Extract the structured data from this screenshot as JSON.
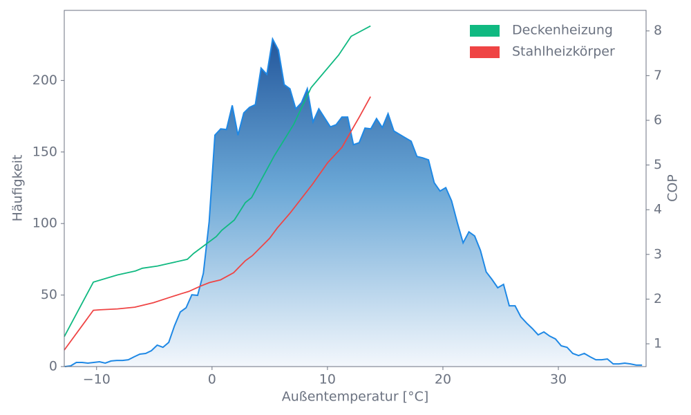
{
  "chart_data": {
    "type": "line",
    "xlabel": "Außentemperatur [°C]",
    "ylabel": "Häufigkeit",
    "y2label": "COP",
    "xlim": [
      -12.8,
      37.6
    ],
    "ylim": [
      0,
      249
    ],
    "y2lim": [
      0.49,
      8.46
    ],
    "xticks": [
      {
        "value": -10,
        "label": "−10"
      },
      0,
      10,
      20,
      30
    ],
    "yticks": [
      0,
      50,
      100,
      150,
      200
    ],
    "y2ticks": [
      1,
      2,
      3,
      4,
      5,
      6,
      7,
      8
    ],
    "legend": "upper right",
    "series": [
      {
        "color": "#1e88e5",
        "fill": true,
        "x": [
          -12.75,
          -12.25,
          -11.75,
          -11.25,
          -10.75,
          -10.25,
          -9.75,
          -9.25,
          -8.75,
          -8.25,
          -7.75,
          -7.25,
          -6.75,
          -6.25,
          -5.75,
          -5.25,
          -4.75,
          -4.25,
          -3.75,
          -3.25,
          -2.75,
          -2.25,
          -1.75,
          -1.25,
          -0.75,
          -0.25,
          0.25,
          0.75,
          1.25,
          1.75,
          2.25,
          2.75,
          3.25,
          3.75,
          4.25,
          4.75,
          5.25,
          5.75,
          6.25,
          6.75,
          7.25,
          7.75,
          8.25,
          8.75,
          9.25,
          9.75,
          10.25,
          10.75,
          11.25,
          11.75,
          12.25,
          12.75,
          13.25,
          13.75,
          14.25,
          14.75,
          15.25,
          15.75,
          16.25,
          16.75,
          17.25,
          17.75,
          18.25,
          18.75,
          19.25,
          19.75,
          20.25,
          20.75,
          21.25,
          21.75,
          22.25,
          22.75,
          23.25,
          23.75,
          24.25,
          24.75,
          25.25,
          25.75,
          26.25,
          26.75,
          27.25,
          27.75,
          28.25,
          28.75,
          29.25,
          29.75,
          30.25,
          30.75,
          31.25,
          31.75,
          32.25,
          32.75,
          33.25,
          33.75,
          34.25,
          34.75,
          35.25,
          35.75,
          36.25,
          36.75,
          37.25
        ],
        "values": [
          0,
          0.5,
          2.9,
          2.9,
          2.4,
          2.9,
          3.4,
          2.4,
          3.9,
          4.3,
          4.3,
          4.8,
          6.8,
          8.7,
          9.2,
          11.1,
          15.0,
          13.5,
          16.9,
          28.5,
          38.2,
          41.1,
          50.2,
          49.8,
          65.2,
          101.4,
          161.8,
          166.2,
          165.7,
          182.6,
          161.8,
          177.3,
          181.2,
          183.1,
          208.7,
          204.3,
          229.0,
          221.3,
          197.1,
          194.2,
          180.2,
          184.5,
          194.2,
          171.0,
          180.2,
          173.9,
          167.6,
          169.1,
          174.4,
          174.4,
          155.1,
          156.5,
          166.7,
          166.2,
          173.4,
          167.1,
          176.8,
          164.7,
          162.3,
          159.9,
          157.5,
          146.9,
          145.9,
          144.5,
          128.5,
          122.7,
          125.1,
          115.9,
          100.5,
          86.5,
          94.2,
          91.3,
          81.2,
          66.2,
          60.9,
          55.1,
          57.5,
          42.5,
          42.5,
          34.8,
          30.4,
          26.6,
          22.2,
          24.2,
          21.3,
          19.3,
          14.5,
          13.5,
          9.2,
          7.7,
          9.2,
          6.8,
          4.8,
          4.8,
          5.3,
          1.9,
          1.9,
          2.4,
          1.9,
          1.0,
          1.0
        ]
      },
      {
        "name": "Deckenheizung",
        "color": "#10b981",
        "axis": "y2",
        "x": [
          -12.8,
          -10.28,
          -8.19,
          -6.63,
          -6.03,
          -4.72,
          -2.14,
          -1.6,
          0.37,
          0.85,
          1.93,
          2.89,
          3.43,
          5.4,
          7.08,
          8.58,
          10.97,
          12.05,
          13.73
        ],
        "values": [
          1.16,
          2.38,
          2.54,
          2.63,
          2.69,
          2.74,
          2.89,
          3.02,
          3.4,
          3.54,
          3.77,
          4.16,
          4.27,
          5.21,
          5.91,
          6.73,
          7.46,
          7.88,
          8.11
        ]
      },
      {
        "name": "Stahlheizkörper",
        "color": "#ef4444",
        "axis": "y2",
        "x": [
          -12.8,
          -10.28,
          -9.69,
          -8.19,
          -6.69,
          -5.07,
          -3.64,
          -2.68,
          -2.02,
          -1.0,
          -0.22,
          0.74,
          1.87,
          2.89,
          3.49,
          4.99,
          5.65,
          6.78,
          8.7,
          10.01,
          11.27,
          11.75,
          12.77,
          13.73
        ],
        "values": [
          0.86,
          1.75,
          1.76,
          1.78,
          1.82,
          1.92,
          2.04,
          2.12,
          2.17,
          2.29,
          2.37,
          2.43,
          2.59,
          2.86,
          2.97,
          3.36,
          3.59,
          3.93,
          4.57,
          5.05,
          5.4,
          5.62,
          6.08,
          6.53
        ]
      }
    ]
  }
}
